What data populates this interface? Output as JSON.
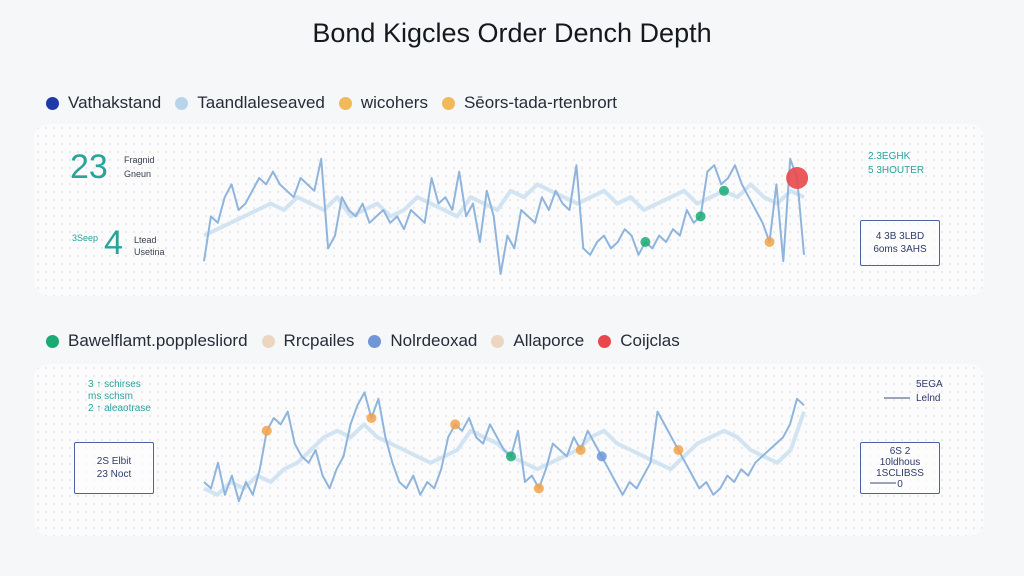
{
  "title": "Bond Kigcles Order Dench Depth",
  "legend_top": [
    {
      "label": "Vathakstand",
      "color": "#1f3aa8"
    },
    {
      "label": "Taandlaleseaved",
      "color": "#b8d4ea"
    },
    {
      "label": "wicohers",
      "color": "#f2b95a"
    },
    {
      "label": "Sēors-tada-rtenbrort",
      "color": "#f2b95a"
    }
  ],
  "legend_bottom": [
    {
      "label": "Bawelflamt.popplesliord",
      "color": "#1aaa74"
    },
    {
      "label": "Rrcpailes",
      "color": "#ecd6c0"
    },
    {
      "label": "Nolrdeoxad",
      "color": "#6e96d8"
    },
    {
      "label": "Allaporce",
      "color": "#ecd6c0"
    },
    {
      "label": "Coijclas",
      "color": "#e8484b"
    }
  ],
  "top_panel": {
    "stat1_value": "23",
    "stat1_line1": "Fragnid",
    "stat1_line2": "Gneun",
    "stat2_prefix": "3Seep",
    "stat2_value": "4",
    "stat2_line1": "Ltead",
    "stat2_line2": "Usetina",
    "corner_line1": "2.3EGHK",
    "corner_line2": "5 3HOUTER",
    "box_line1": "4 3B 3LBD",
    "box_line2": "6oms 3AHS"
  },
  "bottom_panel": {
    "left_line1": "3 ↑ schirses",
    "left_line2": "ms schsm",
    "left_line3": "2 ↑ aleaotrase",
    "box_line1": "2S Elbit",
    "box_line2": "23 Noct",
    "corner_line1": "5EGA",
    "corner_line2": "Lelnd",
    "box2_line1": "6S 2",
    "box2_line2": "10ldhous",
    "box2_line3": "1SCLIBSS",
    "box2_line4": "0"
  },
  "chart_data": [
    {
      "type": "line",
      "series": [
        {
          "values": [
            2,
            9,
            8,
            12,
            14,
            10,
            11,
            13,
            15,
            14,
            16,
            14,
            13,
            12,
            15,
            14,
            13,
            18,
            4,
            6,
            12,
            10,
            9,
            11,
            8,
            9,
            10,
            8,
            9,
            7,
            10,
            9,
            8,
            15,
            11,
            12,
            10,
            16,
            9,
            11,
            5,
            13,
            9,
            0,
            6,
            4,
            10,
            9,
            8,
            12,
            10,
            13,
            11,
            10,
            17,
            4,
            3,
            5,
            6,
            4,
            5,
            7,
            6,
            3,
            5,
            4,
            6,
            5,
            7,
            6,
            10,
            8,
            9,
            16,
            17,
            14,
            15,
            17,
            14,
            12,
            10,
            8,
            5,
            14,
            2,
            18,
            15,
            3
          ]
        },
        {
          "values": [
            6,
            7,
            8,
            9,
            10,
            11,
            10,
            12,
            11,
            10,
            12,
            9,
            10,
            11,
            9,
            10,
            12,
            11,
            10,
            9,
            12,
            11,
            10,
            13,
            12,
            14,
            13,
            12,
            11,
            12,
            13,
            11,
            12,
            10,
            11,
            12,
            13,
            11,
            12,
            13,
            12,
            14,
            12,
            11,
            13,
            12
          ]
        }
      ],
      "markers": [
        {
          "series": 1,
          "index": 39,
          "color": "#1aaa74"
        },
        {
          "series": 0,
          "index": 64,
          "color": "#1aaa74"
        },
        {
          "series": 0,
          "index": 72,
          "color": "#1aaa74"
        },
        {
          "series": 0,
          "index": 82,
          "color": "#f2a24a"
        },
        {
          "series": 0,
          "index": 86,
          "color": "#e8484b"
        }
      ],
      "ylim": [
        0,
        20
      ]
    },
    {
      "type": "line",
      "series": [
        {
          "values": [
            5,
            4,
            8,
            3,
            6,
            2,
            5,
            3,
            7,
            13,
            15,
            14,
            16,
            11,
            9,
            8,
            10,
            6,
            4,
            7,
            9,
            14,
            17,
            19,
            15,
            18,
            12,
            8,
            5,
            4,
            6,
            3,
            5,
            4,
            7,
            12,
            14,
            13,
            15,
            12,
            11,
            14,
            12,
            10,
            9,
            13,
            5,
            6,
            4,
            7,
            11,
            10,
            9,
            12,
            10,
            13,
            11,
            9,
            7,
            5,
            3,
            5,
            4,
            6,
            8,
            16,
            14,
            12,
            10,
            8,
            6,
            4,
            5,
            3,
            4,
            6,
            5,
            7,
            6,
            8,
            9,
            10,
            11,
            12,
            14,
            18,
            17
          ]
        },
        {
          "values": [
            4,
            3,
            5,
            4,
            6,
            5,
            7,
            8,
            10,
            12,
            13,
            12,
            14,
            12,
            11,
            10,
            9,
            8,
            9,
            10,
            13,
            12,
            11,
            9,
            8,
            7,
            8,
            9,
            10,
            12,
            13,
            11,
            10,
            9,
            8,
            7,
            9,
            11,
            12,
            13,
            12,
            10,
            9,
            8,
            10,
            16
          ]
        }
      ],
      "markers": [
        {
          "series": 0,
          "index": 9,
          "color": "#f2a24a"
        },
        {
          "series": 0,
          "index": 24,
          "color": "#f2a24a"
        },
        {
          "series": 0,
          "index": 36,
          "color": "#f2a24a"
        },
        {
          "series": 0,
          "index": 44,
          "color": "#1aaa74"
        },
        {
          "series": 0,
          "index": 48,
          "color": "#f2a24a"
        },
        {
          "series": 0,
          "index": 54,
          "color": "#f2a24a"
        },
        {
          "series": 0,
          "index": 57,
          "color": "#6e96d8"
        },
        {
          "series": 0,
          "index": 68,
          "color": "#f2a24a"
        }
      ],
      "ylim": [
        0,
        20
      ]
    }
  ]
}
